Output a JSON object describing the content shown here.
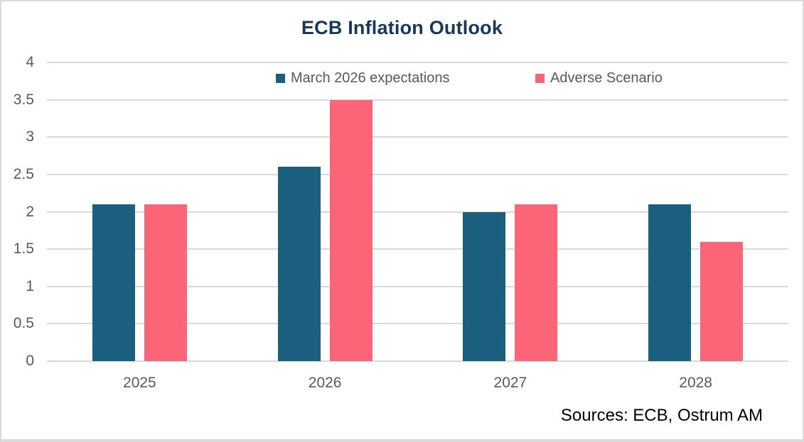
{
  "title": "ECB Inflation Outlook",
  "source_note": "Sources: ECB, Ostrum AM",
  "colors": {
    "series1": "#1B5F7E",
    "series2": "#FC6478",
    "gridline": "#D9D9D9",
    "axis_text": "#595959",
    "title_text": "#17375D",
    "frame_border": "#D9D9D9",
    "background": "#FFFFFF"
  },
  "chart_data": {
    "type": "bar",
    "title": "ECB Inflation Outlook",
    "categories": [
      "2025",
      "2026",
      "2027",
      "2028"
    ],
    "series": [
      {
        "name": "March 2026 expectations",
        "color": "#1B5F7E",
        "values": [
          2.1,
          2.6,
          2.0,
          2.1
        ]
      },
      {
        "name": "Adverse Scenario",
        "color": "#FC6478",
        "values": [
          2.1,
          3.5,
          2.1,
          1.6
        ]
      }
    ],
    "xlabel": "",
    "ylabel": "",
    "ylim": [
      0,
      4
    ],
    "yticks": [
      0,
      0.5,
      1,
      1.5,
      2,
      2.5,
      3,
      3.5,
      4
    ],
    "grid": true,
    "legend_position": "top"
  }
}
